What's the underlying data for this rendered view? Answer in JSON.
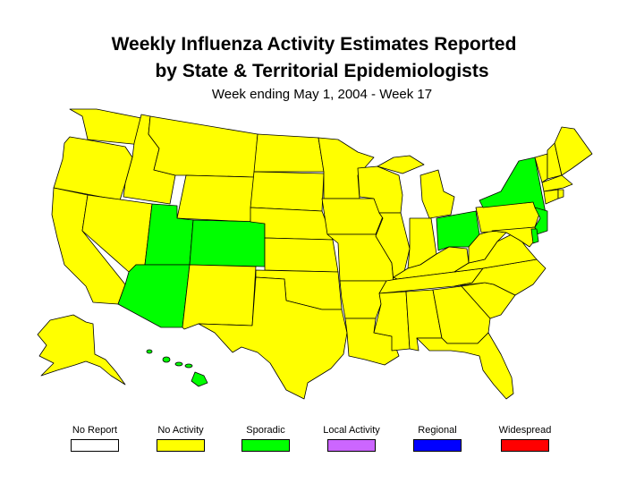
{
  "title_line1": "Weekly Influenza Activity Estimates Reported",
  "title_line2": "by State & Territorial Epidemiologists",
  "subtitle": "Week ending May 1, 2004 - Week 17",
  "colors": {
    "no_report": "#ffffff",
    "no_activity": "#ffff00",
    "sporadic": "#00ff00",
    "local_activity": "#cc66ff",
    "regional": "#0000ff",
    "widespread": "#ff0000",
    "border": "#000000"
  },
  "legend": [
    {
      "label": "No Report",
      "color": "#ffffff"
    },
    {
      "label": "No Activity",
      "color": "#ffff00"
    },
    {
      "label": "Sporadic",
      "color": "#00ff00"
    },
    {
      "label": "Local Activity",
      "color": "#cc66ff"
    },
    {
      "label": "Regional",
      "color": "#0000ff"
    },
    {
      "label": "Widespread",
      "color": "#ff0000"
    }
  ],
  "sporadic_states": [
    "Arizona",
    "Utah",
    "Colorado",
    "Ohio",
    "New York",
    "New Jersey",
    "Delaware",
    "Hawaii"
  ],
  "no_activity_states": [
    "Washington",
    "Oregon",
    "California",
    "Idaho",
    "Nevada",
    "Montana",
    "Wyoming",
    "New Mexico",
    "North Dakota",
    "South Dakota",
    "Nebraska",
    "Kansas",
    "Oklahoma",
    "Texas",
    "Minnesota",
    "Iowa",
    "Missouri",
    "Arkansas",
    "Louisiana",
    "Wisconsin",
    "Illinois",
    "Michigan",
    "Indiana",
    "Kentucky",
    "Tennessee",
    "Mississippi",
    "Alabama",
    "Georgia",
    "Florida",
    "South Carolina",
    "North Carolina",
    "Virginia",
    "West Virginia",
    "Maryland",
    "Pennsylvania",
    "Vermont",
    "New Hampshire",
    "Maine",
    "Massachusetts",
    "Connecticut",
    "Rhode Island",
    "Alaska"
  ]
}
